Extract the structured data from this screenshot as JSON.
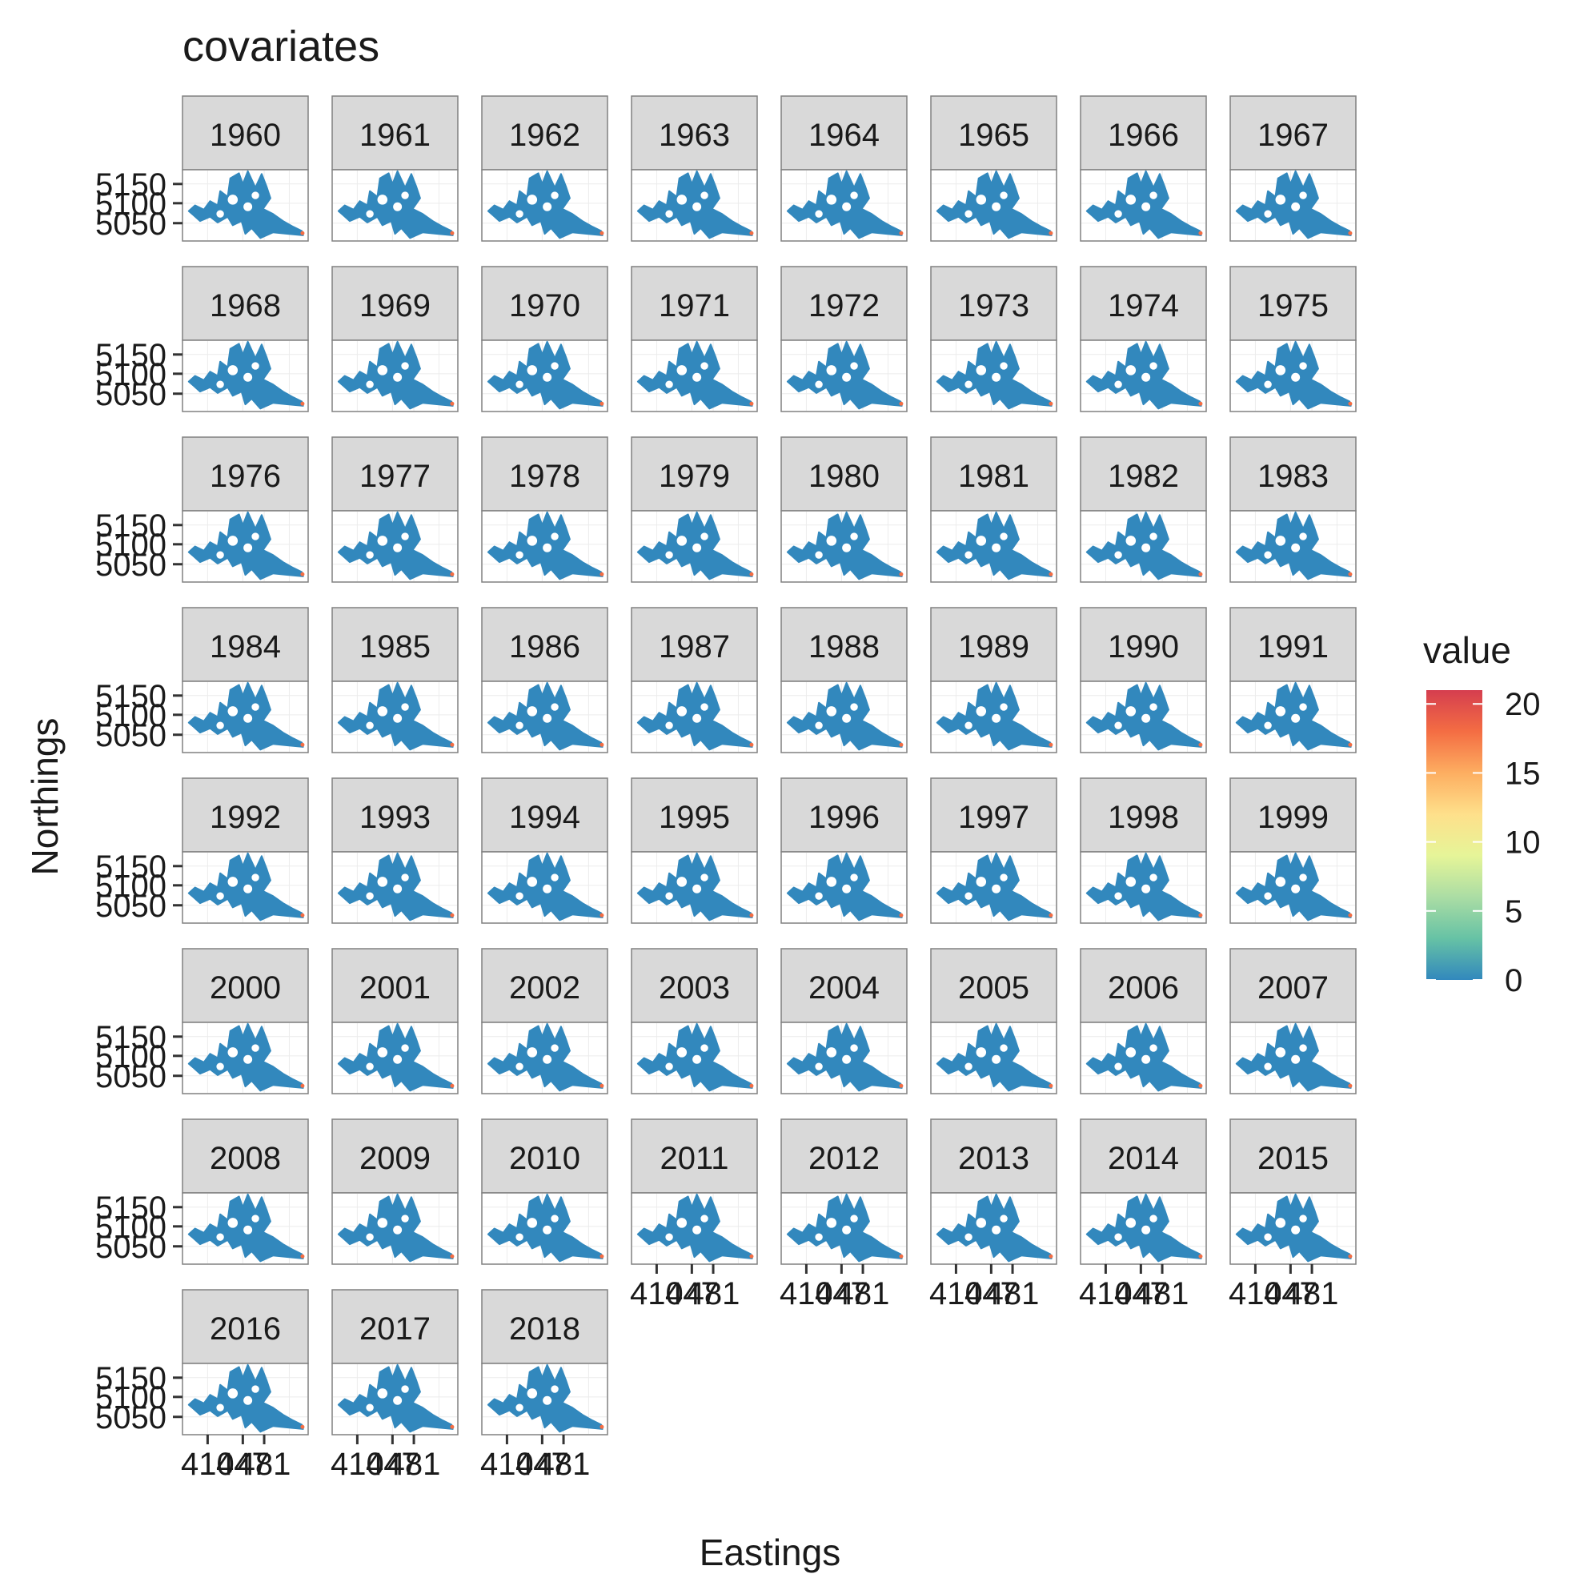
{
  "chart_data": {
    "type": "heatmap",
    "title": "covariates",
    "xlabel": "Eastings",
    "ylabel": "Northings",
    "facets": [
      "1960",
      "1961",
      "1962",
      "1963",
      "1964",
      "1965",
      "1966",
      "1967",
      "1968",
      "1969",
      "1970",
      "1971",
      "1972",
      "1973",
      "1974",
      "1975",
      "1976",
      "1977",
      "1978",
      "1979",
      "1980",
      "1981",
      "1982",
      "1983",
      "1984",
      "1985",
      "1986",
      "1987",
      "1988",
      "1989",
      "1990",
      "1991",
      "1992",
      "1993",
      "1994",
      "1995",
      "1996",
      "1997",
      "1998",
      "1999",
      "2000",
      "2001",
      "2002",
      "2003",
      "2004",
      "2005",
      "2006",
      "2007",
      "2008",
      "2009",
      "2010",
      "2011",
      "2012",
      "2013",
      "2014",
      "2015",
      "2016",
      "2017",
      "2018"
    ],
    "ncol": 8,
    "y_ticks": [
      "5150",
      "5100",
      "5050"
    ],
    "x_ticks": [
      "410",
      "447",
      "481"
    ],
    "legend": {
      "title": "value",
      "position": "right",
      "breaks": [
        "20",
        "15",
        "10",
        "5",
        "0"
      ],
      "range": [
        0,
        21
      ],
      "colors": [
        "#3288bd",
        "#66c2a5",
        "#abdda4",
        "#e6f598",
        "#fee08b",
        "#fdae61",
        "#f46d43",
        "#d53e4f"
      ]
    },
    "dominant_value": 0,
    "map_color": "#3288bd",
    "hotspot_color": "#f46d43",
    "grid": true
  }
}
